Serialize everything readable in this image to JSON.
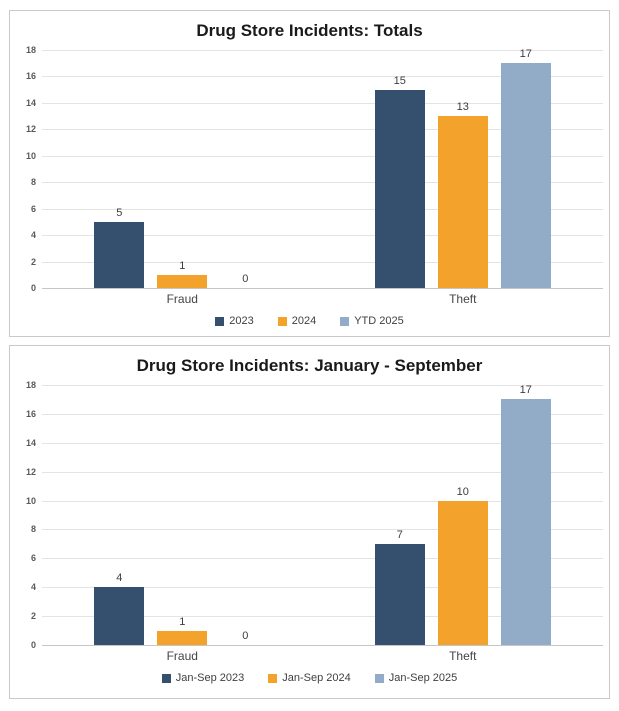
{
  "page": {
    "background": "#FFFFFF"
  },
  "charts_ui": {
    "panel_border": "#C9C9C9",
    "grid_color": "#E4E4E4",
    "baseline_color": "#C6C6C6",
    "tick_text_color": "#595959",
    "value_label_color": "#3D3D3D",
    "category_text_color": "#444444",
    "legend_text_color": "#404040",
    "title_color": "#1A1A1A"
  },
  "chart_data": [
    {
      "type": "bar",
      "title": "Drug Store Incidents: Totals",
      "categories": [
        "Fraud",
        "Theft"
      ],
      "series": [
        {
          "name": "2023",
          "color": "#34506E",
          "values": [
            5,
            15
          ]
        },
        {
          "name": "2024",
          "color": "#F3A32C",
          "values": [
            1,
            13
          ]
        },
        {
          "name": "YTD 2025",
          "color": "#92ACC8",
          "values": [
            0,
            17
          ]
        }
      ],
      "ylim": [
        0,
        18
      ],
      "ytick_step": 2,
      "yticks": [
        18,
        16,
        14,
        12,
        10,
        8,
        6,
        4,
        2,
        0
      ],
      "grid": true,
      "data_labels": true,
      "legend_position": "bottom",
      "xlabel": "",
      "ylabel": ""
    },
    {
      "type": "bar",
      "title": "Drug Store Incidents: January - September",
      "categories": [
        "Fraud",
        "Theft"
      ],
      "series": [
        {
          "name": "Jan-Sep 2023",
          "color": "#34506E",
          "values": [
            4,
            7
          ]
        },
        {
          "name": "Jan-Sep 2024",
          "color": "#F3A32C",
          "values": [
            1,
            10
          ]
        },
        {
          "name": "Jan-Sep 2025",
          "color": "#92ACC8",
          "values": [
            0,
            17
          ]
        }
      ],
      "ylim": [
        0,
        18
      ],
      "ytick_step": 2,
      "yticks": [
        18,
        16,
        14,
        12,
        10,
        8,
        6,
        4,
        2,
        0
      ],
      "grid": true,
      "data_labels": true,
      "legend_position": "bottom",
      "xlabel": "",
      "ylabel": ""
    }
  ]
}
